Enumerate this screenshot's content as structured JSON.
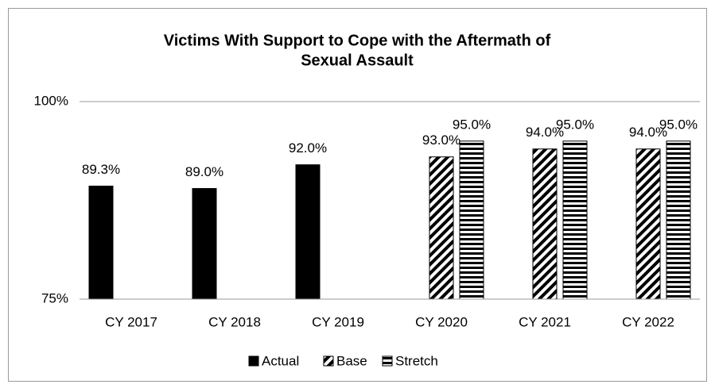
{
  "chart_data": {
    "type": "bar",
    "title": [
      "Victims With Support to Cope with the Aftermath of",
      "Sexual Assault"
    ],
    "categories": [
      "CY 2017",
      "CY 2018",
      "CY 2019",
      "CY 2020",
      "CY 2021",
      "CY 2022"
    ],
    "series": [
      {
        "name": "Actual",
        "color": "#000000",
        "pattern": "solid",
        "values": [
          89.3,
          89.0,
          92.0,
          null,
          null,
          null
        ],
        "value_labels": [
          "89.3%",
          "89.0%",
          "92.0%",
          null,
          null,
          null
        ]
      },
      {
        "name": "Base",
        "color": "#000000",
        "pattern": "diagonal",
        "values": [
          null,
          null,
          null,
          93.0,
          94.0,
          94.0
        ],
        "value_labels": [
          null,
          null,
          null,
          "93.0%",
          "94.0%",
          "94.0%"
        ]
      },
      {
        "name": "Stretch",
        "color": "#000000",
        "pattern": "horizontal",
        "values": [
          null,
          null,
          null,
          95.0,
          95.0,
          95.0
        ],
        "value_labels": [
          null,
          null,
          null,
          "95.0%",
          "95.0%",
          "95.0%"
        ]
      }
    ],
    "ylim": [
      75,
      100
    ],
    "yticks": [
      {
        "value": 75,
        "label": "75%"
      },
      {
        "value": 100,
        "label": "100%"
      }
    ],
    "grid": true,
    "legend": "bottom"
  }
}
